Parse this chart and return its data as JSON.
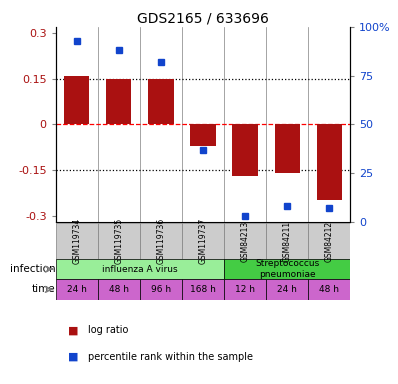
{
  "title": "GDS2165 / 633696",
  "samples": [
    "GSM119734",
    "GSM119735",
    "GSM119736",
    "GSM119737",
    "GSM84213",
    "GSM84211",
    "GSM84212"
  ],
  "log_ratio": [
    0.16,
    0.15,
    0.15,
    -0.07,
    -0.17,
    -0.16,
    -0.25
  ],
  "percentile_pct": [
    93,
    88,
    82,
    37,
    3,
    8,
    7
  ],
  "bar_color": "#aa1111",
  "dot_color": "#1144cc",
  "ylim": [
    -0.32,
    0.32
  ],
  "yticks_left": [
    -0.3,
    -0.15,
    0.0,
    0.15,
    0.3
  ],
  "yticks_left_labels": [
    "-0.3",
    "-0.15",
    "0",
    "0.15",
    "0.3"
  ],
  "yticks_right_pct": [
    0,
    25,
    50,
    75,
    100
  ],
  "yticks_right_labels": [
    "0",
    "25",
    "50",
    "75",
    "100%"
  ],
  "infection_groups": [
    {
      "label": "influenza A virus",
      "start": 0,
      "end": 4,
      "color": "#99ee99"
    },
    {
      "label": "Streptococcus\npneumoniae",
      "start": 4,
      "end": 7,
      "color": "#44cc44"
    }
  ],
  "time_labels": [
    "24 h",
    "48 h",
    "96 h",
    "168 h",
    "12 h",
    "24 h",
    "48 h"
  ],
  "time_color": "#cc66cc",
  "sample_box_color": "#cccccc",
  "label_infection": "infection",
  "label_time": "time",
  "legend_items": [
    {
      "label": "log ratio",
      "color": "#aa1111"
    },
    {
      "label": "percentile rank within the sample",
      "color": "#1144cc"
    }
  ]
}
